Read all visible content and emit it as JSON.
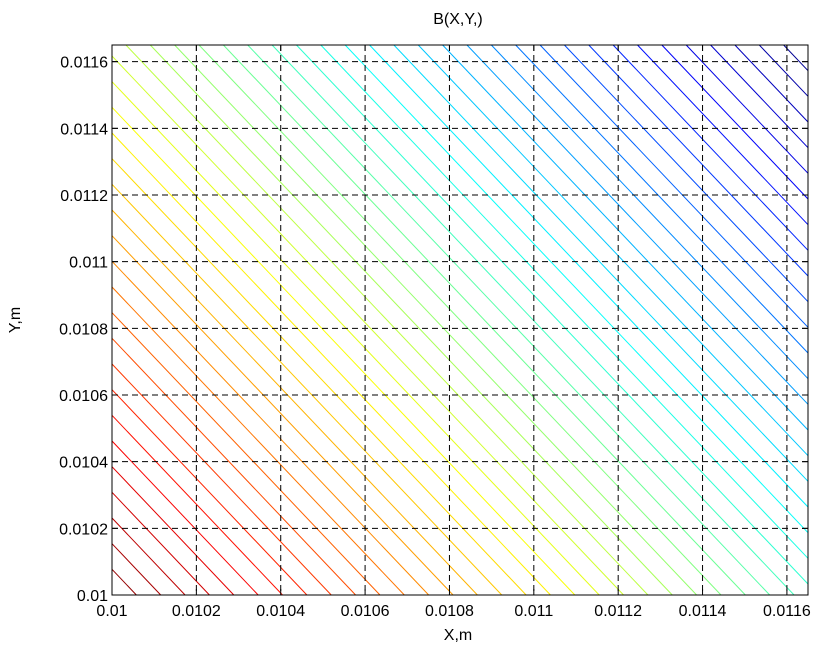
{
  "chart_data": {
    "type": "contour",
    "title": "B(X,Y,)",
    "xlabel": "X,m",
    "ylabel": "Y,m",
    "xlim": [
      0.01,
      0.01165
    ],
    "ylim": [
      0.01,
      0.01165
    ],
    "xticks": [
      0.01,
      0.0102,
      0.0104,
      0.0106,
      0.0108,
      0.011,
      0.0112,
      0.0114,
      0.0116
    ],
    "yticks": [
      0.01,
      0.0102,
      0.0104,
      0.0106,
      0.0108,
      0.011,
      0.0112,
      0.0114,
      0.0116
    ],
    "xtick_labels": [
      "0.01",
      "0.0102",
      "0.0104",
      "0.0106",
      "0.0108",
      "0.011",
      "0.0112",
      "0.0114",
      "0.0116"
    ],
    "ytick_labels": [
      "0.01",
      "0.0102",
      "0.0104",
      "0.0106",
      "0.0108",
      "0.011",
      "0.0112",
      "0.0114",
      "0.0116"
    ],
    "grid": true,
    "colormap": "jet",
    "contour_levels": 50,
    "contour_slope": -0.75,
    "colors": {
      "low_level": "#00008f",
      "high_level": "#800000",
      "grid": "#000000",
      "background": "#ffffff"
    }
  }
}
